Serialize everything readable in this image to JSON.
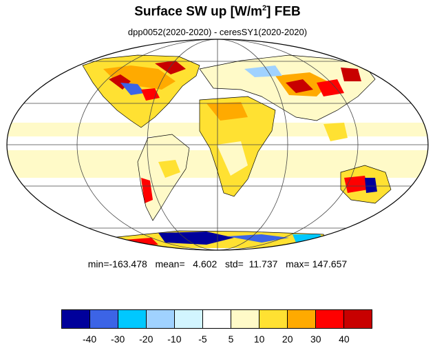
{
  "title": {
    "main": "Surface SW up [W/m",
    "sup": "2",
    "tail": "]  FEB"
  },
  "subtitle": "dpp0052(2020-2020) - ceresSY1(2020-2020)",
  "stats": {
    "text": "min=-163.478   mean=   4.602   std=  11.737   max= 147.657"
  },
  "colorbar": {
    "colors": [
      "#00009b",
      "#3c64e6",
      "#00c8ff",
      "#a0d2ff",
      "#d2f5ff",
      "#ffffff",
      "#fffac8",
      "#ffe132",
      "#ffaa00",
      "#ff0000",
      "#c80000"
    ],
    "tick_labels": [
      "-40",
      "-30",
      "-20",
      "-10",
      "-5",
      "5",
      "10",
      "20",
      "30",
      "40"
    ]
  },
  "map": {
    "projection": "mollweide",
    "grid": true
  }
}
